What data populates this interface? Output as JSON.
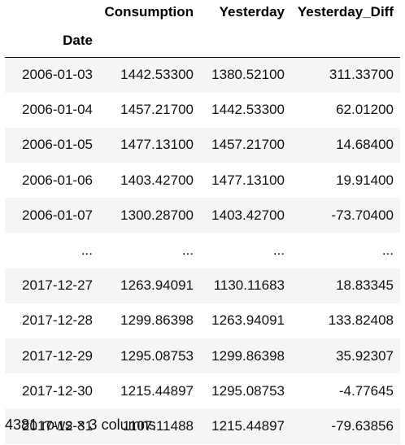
{
  "table": {
    "columns": [
      "Consumption",
      "Yesterday",
      "Yesterday_Diff"
    ],
    "index_name": "Date",
    "rows": [
      {
        "date": "2006-01-03",
        "consumption": "1442.53300",
        "yesterday": "1380.52100",
        "yesterday_diff": "311.33700"
      },
      {
        "date": "2006-01-04",
        "consumption": "1457.21700",
        "yesterday": "1442.53300",
        "yesterday_diff": "62.01200"
      },
      {
        "date": "2006-01-05",
        "consumption": "1477.13100",
        "yesterday": "1457.21700",
        "yesterday_diff": "14.68400"
      },
      {
        "date": "2006-01-06",
        "consumption": "1403.42700",
        "yesterday": "1477.13100",
        "yesterday_diff": "19.91400"
      },
      {
        "date": "2006-01-07",
        "consumption": "1300.28700",
        "yesterday": "1403.42700",
        "yesterday_diff": "-73.70400"
      },
      {
        "date": "...",
        "consumption": "...",
        "yesterday": "...",
        "yesterday_diff": "..."
      },
      {
        "date": "2017-12-27",
        "consumption": "1263.94091",
        "yesterday": "1130.11683",
        "yesterday_diff": "18.83345"
      },
      {
        "date": "2017-12-28",
        "consumption": "1299.86398",
        "yesterday": "1263.94091",
        "yesterday_diff": "133.82408"
      },
      {
        "date": "2017-12-29",
        "consumption": "1295.08753",
        "yesterday": "1299.86398",
        "yesterday_diff": "35.92307"
      },
      {
        "date": "2017-12-30",
        "consumption": "1215.44897",
        "yesterday": "1295.08753",
        "yesterday_diff": "-4.77645"
      },
      {
        "date": "2017-12-31",
        "consumption": "1107.11488",
        "yesterday": "1215.44897",
        "yesterday_diff": "-79.63856"
      }
    ]
  },
  "shape_text": "4381 rows × 3 columns",
  "colors": {
    "stripe": "#f5f5f5",
    "background": "#ffffff",
    "header_rule": "#000000"
  }
}
